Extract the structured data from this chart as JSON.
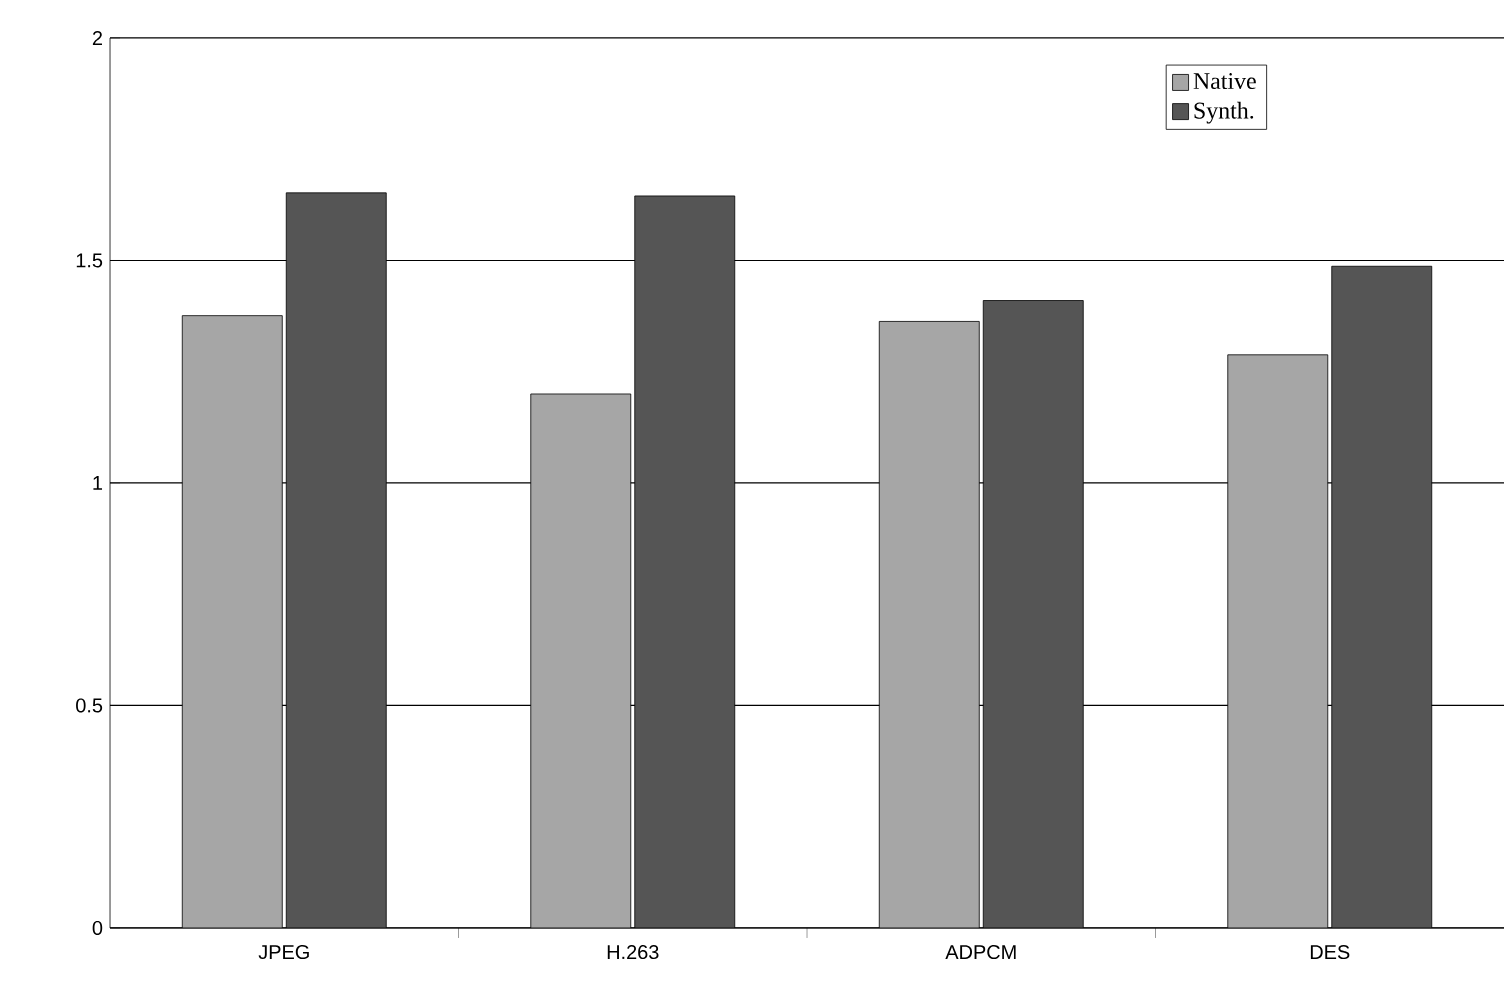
{
  "chart_data": {
    "type": "bar",
    "categories": [
      "JPEG",
      "H.263",
      "ADPCM",
      "DES"
    ],
    "series": [
      {
        "name": "Native",
        "color": "#a6a6a6",
        "values": [
          1.376,
          1.2,
          1.363,
          1.288
        ]
      },
      {
        "name": "Synth.",
        "color": "#555555",
        "values": [
          1.652,
          1.645,
          1.41,
          1.487
        ]
      }
    ],
    "ylim": [
      0,
      2
    ],
    "yticks": [
      0,
      0.5,
      1,
      1.5,
      2
    ],
    "grid": "y",
    "legend": "top right"
  }
}
